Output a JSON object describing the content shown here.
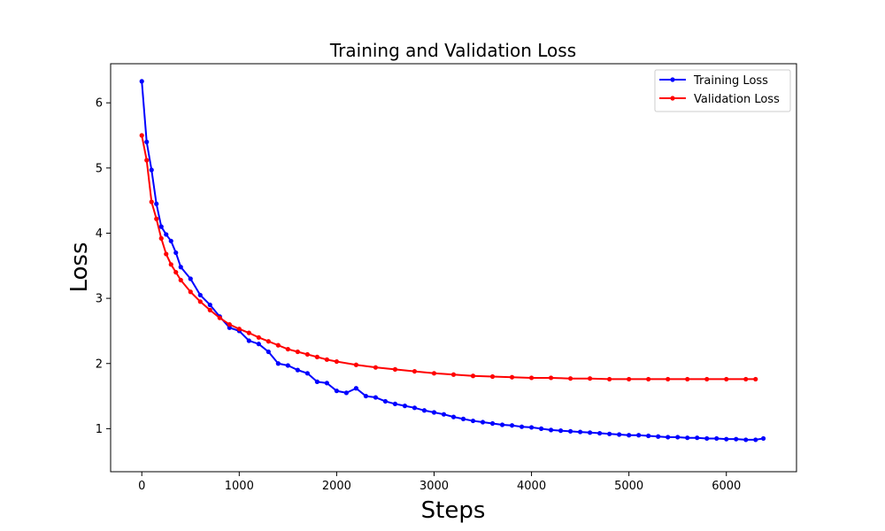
{
  "chart_data": {
    "type": "line",
    "title": "Training and Validation Loss",
    "xlabel": "Steps",
    "ylabel": "Loss",
    "xlim": [
      -320,
      6720
    ],
    "ylim": [
      0.34,
      6.6
    ],
    "xticks": [
      0,
      1000,
      2000,
      3000,
      4000,
      5000,
      6000
    ],
    "yticks": [
      1,
      2,
      3,
      4,
      5,
      6
    ],
    "grid": false,
    "legend_position": "top-right",
    "series": [
      {
        "name": "Training Loss",
        "color": "#0000ff",
        "marker": "circle",
        "x": [
          0,
          50,
          100,
          150,
          200,
          250,
          300,
          350,
          400,
          500,
          600,
          700,
          800,
          900,
          1000,
          1100,
          1200,
          1300,
          1400,
          1500,
          1600,
          1700,
          1800,
          1900,
          2000,
          2100,
          2200,
          2300,
          2400,
          2500,
          2600,
          2700,
          2800,
          2900,
          3000,
          3100,
          3200,
          3300,
          3400,
          3500,
          3600,
          3700,
          3800,
          3900,
          4000,
          4100,
          4200,
          4300,
          4400,
          4500,
          4600,
          4700,
          4800,
          4900,
          5000,
          5100,
          5200,
          5300,
          5400,
          5500,
          5600,
          5700,
          5800,
          5900,
          6000,
          6100,
          6200,
          6300,
          6380
        ],
        "y": [
          6.33,
          5.4,
          4.97,
          4.45,
          4.1,
          3.98,
          3.88,
          3.7,
          3.48,
          3.3,
          3.05,
          2.9,
          2.72,
          2.55,
          2.5,
          2.35,
          2.3,
          2.18,
          2.0,
          1.97,
          1.9,
          1.85,
          1.72,
          1.7,
          1.58,
          1.55,
          1.62,
          1.5,
          1.48,
          1.42,
          1.38,
          1.35,
          1.32,
          1.28,
          1.25,
          1.22,
          1.18,
          1.15,
          1.12,
          1.1,
          1.08,
          1.06,
          1.05,
          1.03,
          1.02,
          1.0,
          0.98,
          0.97,
          0.96,
          0.95,
          0.94,
          0.93,
          0.92,
          0.91,
          0.9,
          0.9,
          0.89,
          0.88,
          0.87,
          0.87,
          0.86,
          0.86,
          0.85,
          0.85,
          0.84,
          0.84,
          0.83,
          0.83,
          0.85
        ]
      },
      {
        "name": "Validation Loss",
        "color": "#ff0000",
        "marker": "circle",
        "x": [
          0,
          50,
          100,
          150,
          200,
          250,
          300,
          350,
          400,
          500,
          600,
          700,
          800,
          900,
          1000,
          1100,
          1200,
          1300,
          1400,
          1500,
          1600,
          1700,
          1800,
          1900,
          2000,
          2200,
          2400,
          2600,
          2800,
          3000,
          3200,
          3400,
          3600,
          3800,
          4000,
          4200,
          4400,
          4600,
          4800,
          5000,
          5200,
          5400,
          5600,
          5800,
          6000,
          6200,
          6300
        ],
        "y": [
          5.5,
          5.12,
          4.48,
          4.22,
          3.92,
          3.68,
          3.52,
          3.4,
          3.28,
          3.1,
          2.95,
          2.82,
          2.7,
          2.6,
          2.53,
          2.47,
          2.4,
          2.34,
          2.28,
          2.22,
          2.18,
          2.14,
          2.1,
          2.06,
          2.03,
          1.98,
          1.94,
          1.91,
          1.88,
          1.85,
          1.83,
          1.81,
          1.8,
          1.79,
          1.78,
          1.78,
          1.77,
          1.77,
          1.76,
          1.76,
          1.76,
          1.76,
          1.76,
          1.76,
          1.76,
          1.76,
          1.76
        ]
      }
    ]
  }
}
